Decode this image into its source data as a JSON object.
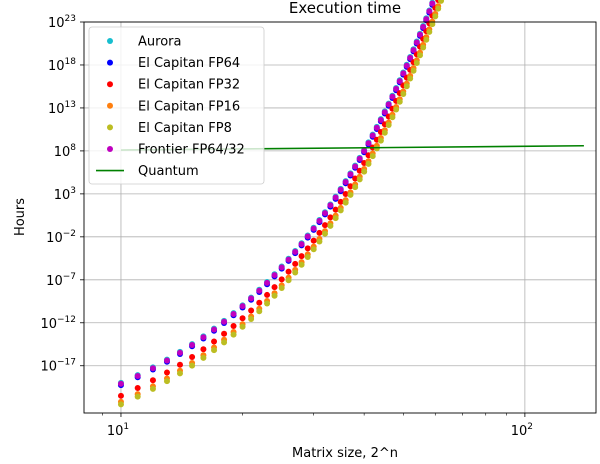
{
  "chart_data": {
    "type": "scatter",
    "title": "Execution time",
    "xlabel": "Matrix size, 2^n",
    "ylabel": "Hours",
    "x_scale": "log",
    "y_scale": "log",
    "xlim": [
      8.1,
      150
    ],
    "ylim_exponent": [
      -22.5,
      23
    ],
    "grid": true,
    "legend_position": "top-left",
    "x_ticks": [
      {
        "base": "10",
        "exp": "1",
        "value": 10
      },
      {
        "base": "10",
        "exp": "2",
        "value": 100
      }
    ],
    "y_ticks": [
      {
        "base": "10",
        "exp": "23",
        "value": 23
      },
      {
        "base": "10",
        "exp": "18",
        "value": 18
      },
      {
        "base": "10",
        "exp": "13",
        "value": 13
      },
      {
        "base": "10",
        "exp": "8",
        "value": 8
      },
      {
        "base": "10",
        "exp": "3",
        "value": 3
      },
      {
        "base": "10",
        "exp": "−2",
        "value": -2
      },
      {
        "base": "10",
        "exp": "−7",
        "value": -7
      },
      {
        "base": "10",
        "exp": "−12",
        "value": -12
      },
      {
        "base": "10",
        "exp": "−17",
        "value": -17
      }
    ],
    "n_values": [
      10,
      11,
      12,
      13,
      14,
      15,
      16,
      17,
      18,
      19,
      20,
      21,
      22,
      23,
      24,
      25,
      26,
      27,
      28,
      29,
      30,
      31,
      32,
      33,
      34,
      35,
      36,
      37,
      38,
      39,
      40,
      41,
      42,
      43,
      44,
      45,
      46,
      47,
      48,
      49,
      50,
      51,
      52,
      53,
      54,
      55,
      56,
      57,
      58,
      59,
      60,
      61,
      62,
      63,
      64,
      65,
      66,
      67,
      68,
      69,
      70,
      71,
      72,
      73,
      74,
      75,
      76,
      77,
      78,
      79,
      80,
      81,
      82,
      83,
      84,
      85,
      86,
      87,
      88,
      89,
      90,
      91,
      92,
      93,
      94,
      95,
      96,
      97,
      98,
      99,
      100,
      101,
      102,
      103,
      104,
      105,
      106,
      107,
      108,
      109,
      110,
      111,
      112,
      113,
      114,
      115,
      116,
      117,
      118,
      119,
      120,
      121,
      122,
      123,
      124,
      125,
      126,
      127,
      128,
      129,
      130,
      131,
      132,
      133,
      134,
      135,
      136,
      137,
      138,
      139,
      140
    ],
    "classical_model": "log10(hours) = 0.903*n + offset",
    "series": [
      {
        "name": "Aurora",
        "color": "#17becf",
        "kind": "scatter",
        "log10_hours_at_n10": -19.0
      },
      {
        "name": "El Capitan FP64",
        "color": "#0000ff",
        "kind": "scatter",
        "log10_hours_at_n10": -19.25
      },
      {
        "name": "El Capitan FP32",
        "color": "#ff0000",
        "kind": "scatter",
        "log10_hours_at_n10": -20.5
      },
      {
        "name": "El Capitan FP16",
        "color": "#ff7f0e",
        "kind": "scatter",
        "log10_hours_at_n10": -21.2
      },
      {
        "name": "El Capitan FP8",
        "color": "#bcbd22",
        "kind": "scatter",
        "log10_hours_at_n10": -21.5
      },
      {
        "name": "Frontier FP64/32",
        "color": "#bf00bf",
        "kind": "scatter",
        "log10_hours_at_n10": -19.1
      },
      {
        "name": "Quantum",
        "color": "#008000",
        "kind": "line",
        "x": [
          10,
          140
        ],
        "log10_hours": [
          8.1,
          8.6
        ]
      }
    ]
  }
}
